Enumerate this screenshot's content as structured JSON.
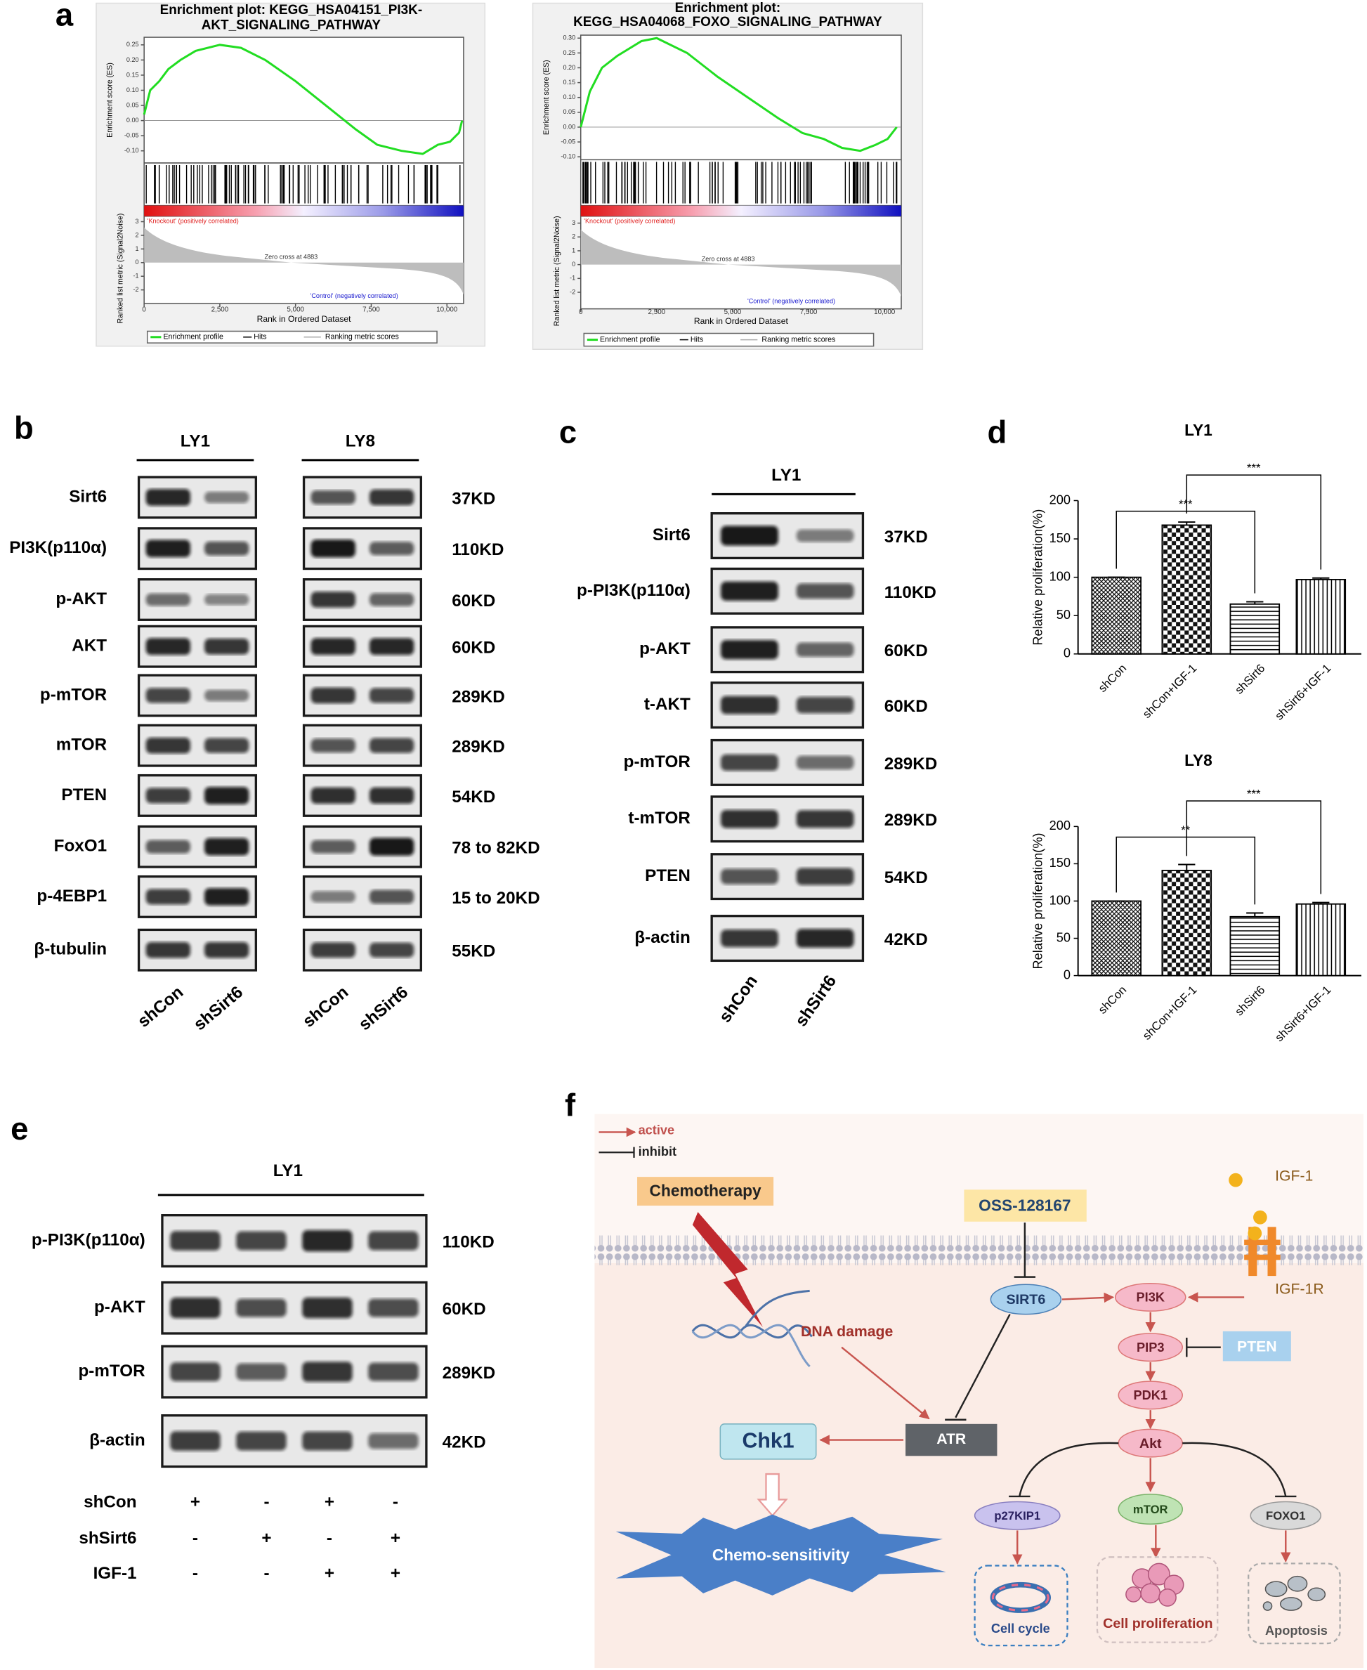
{
  "panel_labels": [
    "a",
    "b",
    "c",
    "d",
    "e",
    "f"
  ],
  "chart_data": [
    {
      "type": "line",
      "title": [
        "Enrichment plot: KEGG_HSA04151_PI3K-",
        "AKT_SIGNALING_PATHWAY"
      ],
      "y_label": "Enrichment score (ES)",
      "y2_label": "Ranked list metric (Signal2Noise)",
      "x_label": "Rank in Ordered Dataset",
      "x": [
        0,
        200,
        500,
        800,
        1200,
        1700,
        2500,
        3200,
        4000,
        5000,
        6000,
        7000,
        7700,
        8500,
        9200,
        9700,
        10100,
        10400,
        10500
      ],
      "series": [
        {
          "name": "Enrichment profile",
          "color": "#22dd22",
          "values": [
            0.02,
            0.1,
            0.13,
            0.17,
            0.2,
            0.23,
            0.25,
            0.24,
            0.2,
            0.13,
            0.05,
            -0.03,
            -0.08,
            -0.1,
            -0.11,
            -0.08,
            -0.07,
            -0.04,
            0.0
          ]
        }
      ],
      "legend_extra": [
        "Hits",
        "Ranking metric scores"
      ],
      "xlim": [
        0,
        10550
      ],
      "xticks": [
        0,
        {
          "value": 2500,
          "label": "2,500"
        },
        {
          "value": 5000,
          "label": "5,000"
        },
        {
          "value": 7500,
          "label": "7,500"
        },
        {
          "value": 10000,
          "label": "10,000"
        }
      ],
      "ylim": [
        -0.14,
        0.275
      ],
      "yticks": [
        0.25,
        {
          "value": 0.2,
          "label": "0.20"
        },
        0.15,
        {
          "value": 0.1,
          "label": "0.10"
        },
        0.05,
        {
          "value": 0,
          "label": "0.00"
        },
        -0.05,
        {
          "value": -0.1,
          "label": "-0.10"
        }
      ],
      "y2lim": [
        -3,
        3.4
      ],
      "y2ticks": [
        3,
        2,
        1,
        0,
        -1,
        -2
      ],
      "pos_label": "'Knockout' (positively correlated)",
      "neg_label": "'Control' (negatively correlated)",
      "zero_cross": "Zero cross at 4883"
    },
    {
      "type": "line",
      "title": [
        "Enrichment plot:",
        "KEGG_HSA04068_FOXO_SIGNALING_PATHWAY"
      ],
      "y_label": "Enrichment score (ES)",
      "y2_label": "Ranked list metric (Signal2Noise)",
      "x_label": "Rank in Ordered Dataset",
      "x": [
        0,
        300,
        700,
        1200,
        2000,
        2500,
        3500,
        4500,
        5500,
        6500,
        7300,
        8000,
        8600,
        9200,
        9700,
        10100,
        10400
      ],
      "series": [
        {
          "name": "Enrichment profile",
          "color": "#22dd22",
          "values": [
            0.0,
            0.12,
            0.2,
            0.24,
            0.29,
            0.3,
            0.25,
            0.17,
            0.1,
            0.03,
            -0.02,
            -0.04,
            -0.07,
            -0.08,
            -0.06,
            -0.04,
            0.0
          ]
        }
      ],
      "legend_extra": [
        "Hits",
        "Ranking metric scores"
      ],
      "xlim": [
        0,
        10550
      ],
      "xticks": [
        0,
        {
          "value": 2500,
          "label": "2,500"
        },
        {
          "value": 5000,
          "label": "5,000"
        },
        {
          "value": 7500,
          "label": "7,500"
        },
        {
          "value": 10000,
          "label": "10,000"
        }
      ],
      "ylim": [
        -0.11,
        0.31
      ],
      "yticks": [
        {
          "value": 0.3,
          "label": "0.30"
        },
        0.25,
        {
          "value": 0.2,
          "label": "0.20"
        },
        0.15,
        {
          "value": 0.1,
          "label": "0.10"
        },
        0.05,
        {
          "value": 0,
          "label": "0.00"
        },
        -0.05,
        {
          "value": -0.1,
          "label": "-0.10"
        }
      ],
      "y2lim": [
        -3.2,
        3.5
      ],
      "y2ticks": [
        3,
        2,
        1,
        0,
        -1,
        -2
      ],
      "pos_label": "'Knockout' (positively correlated)",
      "neg_label": "'Control' (negatively correlated)",
      "zero_cross": "Zero cross at 4883"
    },
    {
      "type": "bar",
      "title": "LY1",
      "y_label": "Relative proliferation(%)",
      "categories": [
        "shCon",
        "shCon+IGF-1",
        "shSirt6",
        "shSirt6+IGF-1"
      ],
      "values": [
        100,
        168,
        65,
        97
      ],
      "errors": [
        0,
        4,
        3,
        2
      ],
      "ylim": [
        0,
        200
      ],
      "yticks": [
        0,
        50,
        100,
        150,
        200
      ],
      "significance": [
        "***",
        "***"
      ]
    },
    {
      "type": "bar",
      "title": "LY8",
      "y_label": "Relative proliferation(%)",
      "categories": [
        "shCon",
        "shCon+IGF-1",
        "shSirt6",
        "shSirt6+IGF-1"
      ],
      "values": [
        100,
        141,
        79,
        96
      ],
      "errors": [
        0,
        8,
        5,
        2
      ],
      "ylim": [
        0,
        200
      ],
      "yticks": [
        0,
        50,
        100,
        150,
        200
      ],
      "significance": [
        "**",
        "***"
      ]
    }
  ],
  "blots": {
    "b": {
      "cell_lines": [
        "LY1",
        "LY8"
      ],
      "proteins": [
        "Sirt6",
        "PI3K(p110α)",
        "p-AKT",
        "AKT",
        "p-mTOR",
        "mTOR",
        "PTEN",
        "FoxO1",
        "p-4EBP1",
        "β-tubulin"
      ],
      "sizes": [
        "37KD",
        "110KD",
        "60KD",
        "60KD",
        "289KD",
        "289KD",
        "54KD",
        "78 to 82KD",
        "15 to 20KD",
        "55KD"
      ],
      "lanes": [
        "shCon",
        "shSirt6"
      ]
    },
    "c": {
      "cell_line": "LY1",
      "proteins": [
        "Sirt6",
        "p-PI3K(p110α)",
        "p-AKT",
        "t-AKT",
        "p-mTOR",
        "t-mTOR",
        "PTEN",
        "β-actin"
      ],
      "sizes": [
        "37KD",
        "110KD",
        "60KD",
        "60KD",
        "289KD",
        "289KD",
        "54KD",
        "42KD"
      ],
      "lanes": [
        "shCon",
        "shSirt6"
      ]
    },
    "e": {
      "cell_line": "LY1",
      "proteins": [
        "p-PI3K(p110α)",
        "p-AKT",
        "p-mTOR",
        "β-actin"
      ],
      "sizes": [
        "110KD",
        "60KD",
        "289KD",
        "42KD"
      ],
      "conditions": [
        {
          "name": "shCon",
          "marks": [
            "+",
            "-",
            "+",
            "-"
          ]
        },
        {
          "name": "shSirt6",
          "marks": [
            "-",
            "+",
            "-",
            "+"
          ]
        },
        {
          "name": "IGF-1",
          "marks": [
            "-",
            "-",
            "+",
            "+"
          ]
        }
      ]
    }
  },
  "pathway": {
    "legend": [
      "active",
      "inhibit"
    ],
    "chemotherapy": "Chemotherapy",
    "inhibitor": "OSS-128167",
    "ligand": "IGF-1",
    "receptor": "IGF-1R",
    "dna_damage": "DNA damage",
    "nodes": {
      "sirt6": "SIRT6",
      "pi3k": "PI3K",
      "pip3": "PIP3",
      "pten": "PTEN",
      "pdk1": "PDK1",
      "akt": "Akt",
      "atr": "ATR",
      "chk1": "Chk1",
      "p27": "p27KIP1",
      "mtor": "mTOR",
      "foxo1": "FOXO1"
    },
    "outcomes": [
      "Chemo-sensitivity",
      "Cell cycle",
      "Cell proliferation",
      "Apoptosis"
    ]
  }
}
